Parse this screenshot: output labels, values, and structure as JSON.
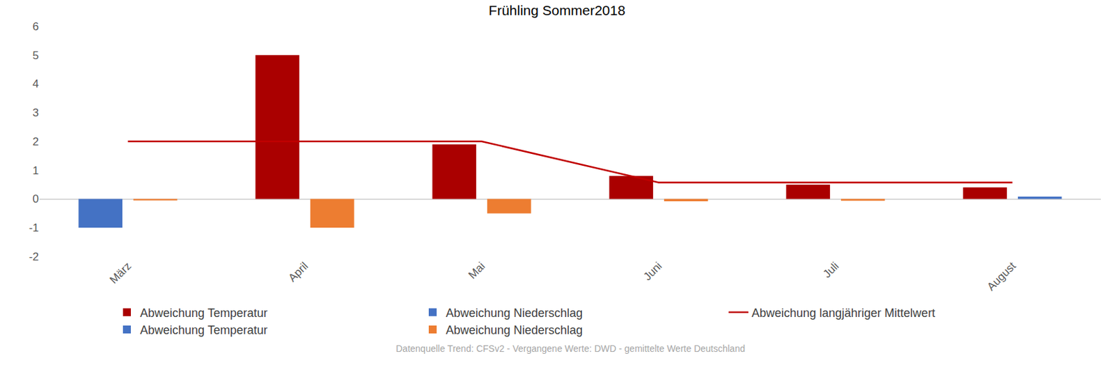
{
  "chart_data": {
    "type": "bar",
    "title": "Frühling Sommer2018",
    "categories": [
      "März",
      "April",
      "Mai",
      "Juni",
      "Juli",
      "August"
    ],
    "series": [
      {
        "name": "Abweichung Temperatur",
        "type": "bar",
        "color": "#aa0000",
        "values": [
          null,
          5,
          1.9,
          0.8,
          0.5,
          0.4
        ]
      },
      {
        "name": "Abweichung Niederschlag",
        "type": "bar",
        "color": "#4472c4",
        "values": [
          null,
          null,
          null,
          null,
          null,
          0.08
        ]
      },
      {
        "name": "Abweichung langjähriger Mittelwert",
        "type": "line",
        "color": "#c00000",
        "values": [
          2,
          2,
          2,
          0.57,
          0.57,
          0.57
        ]
      },
      {
        "name": "Abweichung Temperatur",
        "type": "bar",
        "color": "#4472c4",
        "values": [
          -1,
          null,
          null,
          null,
          null,
          null
        ]
      },
      {
        "name": "Abweichung Niederschlag",
        "type": "bar",
        "color": "#ed7d31",
        "values": [
          -0.05,
          -1,
          -0.5,
          -0.08,
          -0.06,
          null
        ]
      }
    ],
    "ylim": [
      -2,
      6
    ],
    "yticks": [
      -2,
      -1,
      0,
      1,
      2,
      3,
      4,
      5,
      6
    ],
    "grid": false,
    "legend": "bottom",
    "annotations": [
      "Datenquelle Trend: CFSv2 - Vergangene Werte: DWD - gemittelte Werte Deutschland"
    ]
  }
}
